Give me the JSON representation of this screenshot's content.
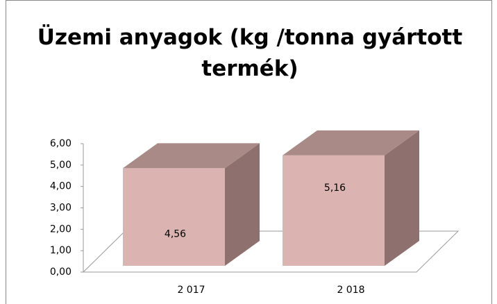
{
  "chart_data": {
    "type": "bar3d",
    "title": "Üzemi anyagok (kg /tonna gyártott termék)",
    "categories": [
      "2 017",
      "2 018"
    ],
    "values": [
      4.56,
      5.16
    ],
    "value_labels": [
      "4,56",
      "5,16"
    ],
    "color": "#dbb4b1",
    "ylim": [
      0,
      6
    ],
    "yticks": [
      {
        "value": 0,
        "label": "0,00"
      },
      {
        "value": 1,
        "label": "1,00"
      },
      {
        "value": 2,
        "label": "2,00"
      },
      {
        "value": 3,
        "label": "3,00"
      },
      {
        "value": 4,
        "label": "4,00"
      },
      {
        "value": 5,
        "label": "5,00"
      },
      {
        "value": 6,
        "label": "6,00"
      }
    ],
    "grid": false
  }
}
